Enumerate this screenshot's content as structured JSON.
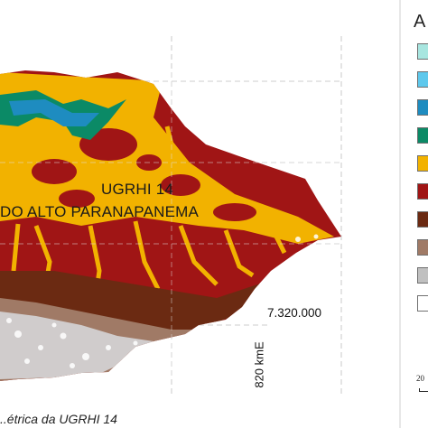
{
  "map": {
    "region_label_1": "UGRHI 14",
    "region_label_2": "DO ALTO PARANAPANEMA",
    "northing_label": "7.320.000",
    "easting_label": "820 kmE"
  },
  "legend": {
    "title_fragment": "A",
    "swatch_colors": [
      "#a8e6e0",
      "#5ec8ec",
      "#1e8cc0",
      "#0b8a66",
      "#f2b200",
      "#a01515",
      "#6b2a12",
      "#a07a66",
      "#c0c0c0",
      "#ffffff"
    ]
  },
  "scale": {
    "number": "20"
  },
  "caption": {
    "text": "..étrica da UGRHI 14"
  },
  "colors": {
    "green": "#0b8a66",
    "cyan": "#1e8cc0",
    "yellow": "#f2b200",
    "dark_red": "#a01515",
    "brown": "#6b2a12",
    "gray_brown": "#a07a66",
    "light_gray": "#c8c8c8"
  }
}
